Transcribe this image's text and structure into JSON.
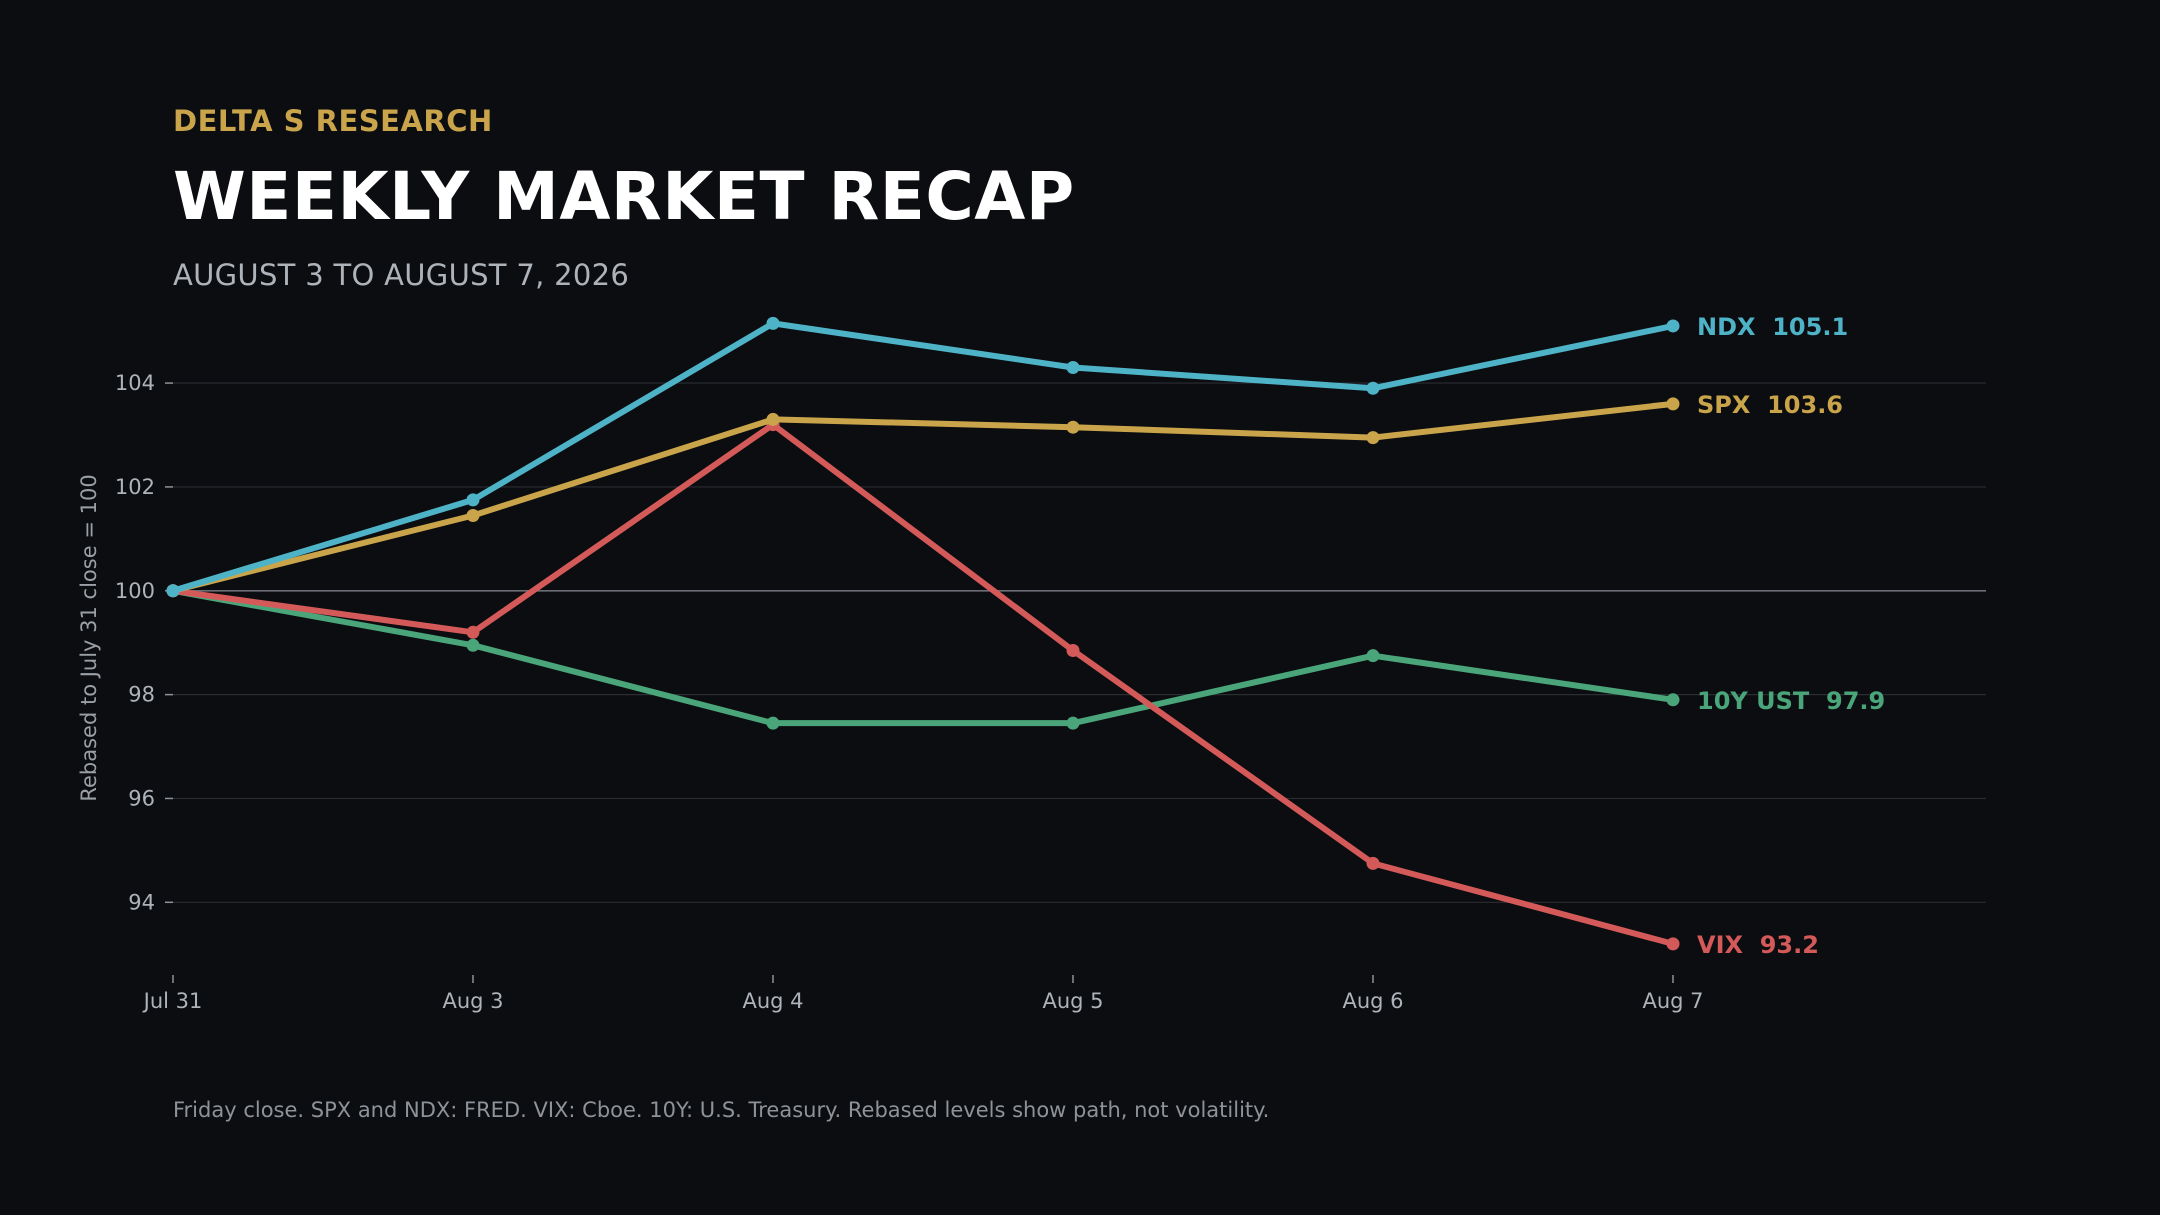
{
  "header": {
    "brand": "DELTA S RESEARCH",
    "title": "WEEKLY MARKET RECAP",
    "subtitle": "AUGUST 3 TO AUGUST 7, 2026"
  },
  "footnote": "Friday close. SPX and NDX: FRED. VIX: Cboe. 10Y: U.S. Treasury. Rebased levels show path, not volatility.",
  "chart_data": {
    "type": "line",
    "ylabel": "Rebased to July 31 close = 100",
    "xlabel": "",
    "categories": [
      "Jul 31",
      "Aug 3",
      "Aug 4",
      "Aug 5",
      "Aug 6",
      "Aug 7"
    ],
    "yticks": [
      94,
      96,
      98,
      100,
      102,
      104
    ],
    "ylim": [
      92.6,
      105.6
    ],
    "grid": true,
    "series": [
      {
        "name": "NDX",
        "end_label": "NDX  105.1",
        "color": "#4fb3c8",
        "values": [
          100.0,
          101.75,
          105.15,
          104.3,
          103.9,
          105.1
        ]
      },
      {
        "name": "SPX",
        "end_label": "SPX  103.6",
        "color": "#c9a44a",
        "values": [
          100.0,
          101.45,
          103.3,
          103.15,
          102.95,
          103.6
        ]
      },
      {
        "name": "10Y UST",
        "end_label": "10Y UST  97.9",
        "color": "#4aa57a",
        "values": [
          100.0,
          98.95,
          97.45,
          97.45,
          98.75,
          97.9
        ]
      },
      {
        "name": "VIX",
        "end_label": "VIX  93.2",
        "color": "#d45a5a",
        "values": [
          100.0,
          99.2,
          103.2,
          98.85,
          94.75,
          93.2
        ]
      }
    ]
  }
}
